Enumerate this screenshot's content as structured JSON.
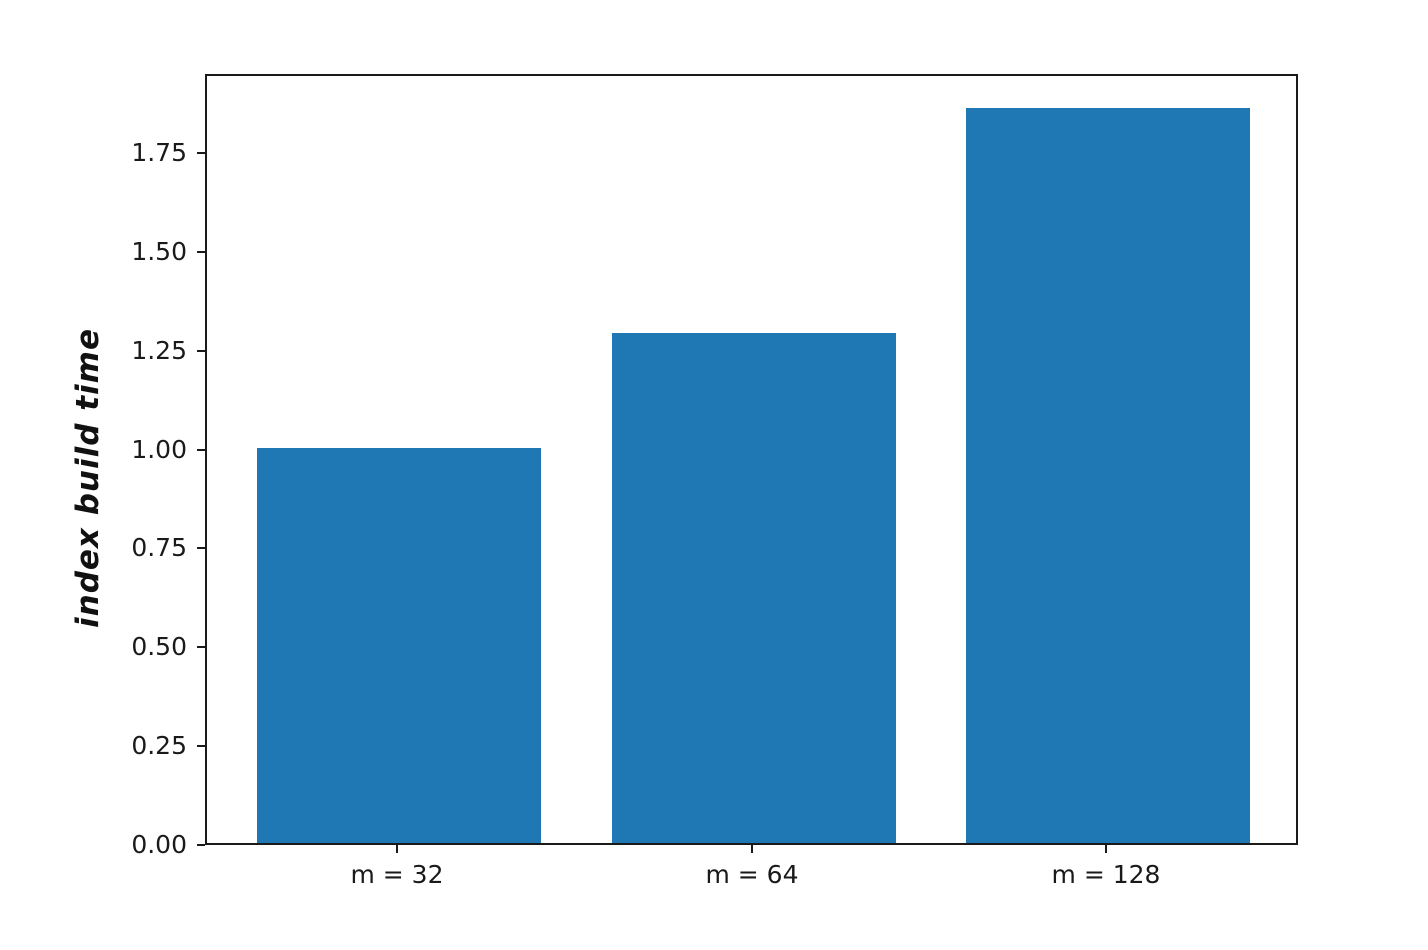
{
  "chart_data": {
    "type": "bar",
    "categories": [
      "m = 32",
      "m = 64",
      "m = 128"
    ],
    "values": [
      1.0,
      1.29,
      1.86
    ],
    "title": "",
    "xlabel": "",
    "ylabel": "index build time",
    "ylim": [
      0,
      1.95
    ],
    "yticks": [
      0,
      0.25,
      0.5,
      0.75,
      1.0,
      1.25,
      1.5,
      1.75
    ],
    "ytick_labels": [
      "0.00",
      "0.25",
      "0.50",
      "0.75",
      "1.00",
      "1.25",
      "1.50",
      "1.75"
    ],
    "bar_color": "#1f77b4",
    "axis_color": "#1a1a1a",
    "background": "#ffffff",
    "grid": false,
    "legend_position": "none"
  }
}
